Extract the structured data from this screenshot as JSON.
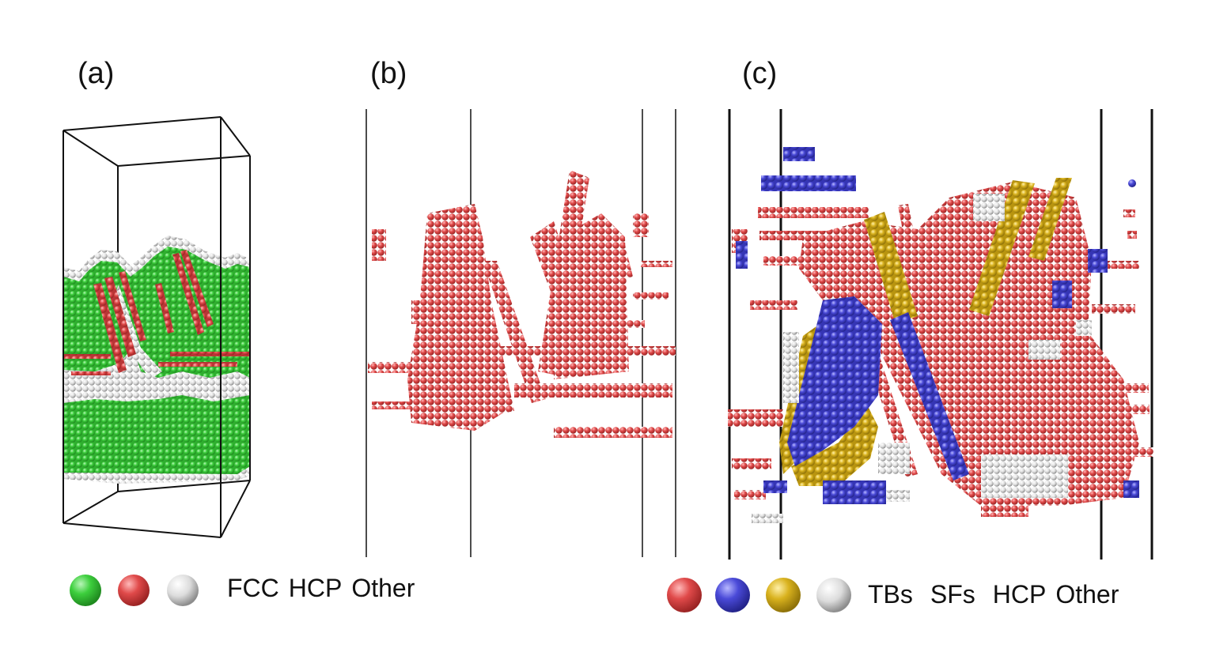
{
  "panels": {
    "a": {
      "label": "(a)"
    },
    "b": {
      "label": "(b)"
    },
    "c": {
      "label": "(c)"
    }
  },
  "legend_a": {
    "items": [
      "FCC",
      "HCP",
      "Other"
    ],
    "colors": [
      "#3dcf3d",
      "#e04a4a",
      "#d8d8d8"
    ]
  },
  "legend_c": {
    "items": [
      "TBs",
      "SFs",
      "HCP",
      "Other"
    ],
    "colors": [
      "#e04a4a",
      "#4a4ad8",
      "#d9b21e",
      "#d8d8d8"
    ]
  }
}
